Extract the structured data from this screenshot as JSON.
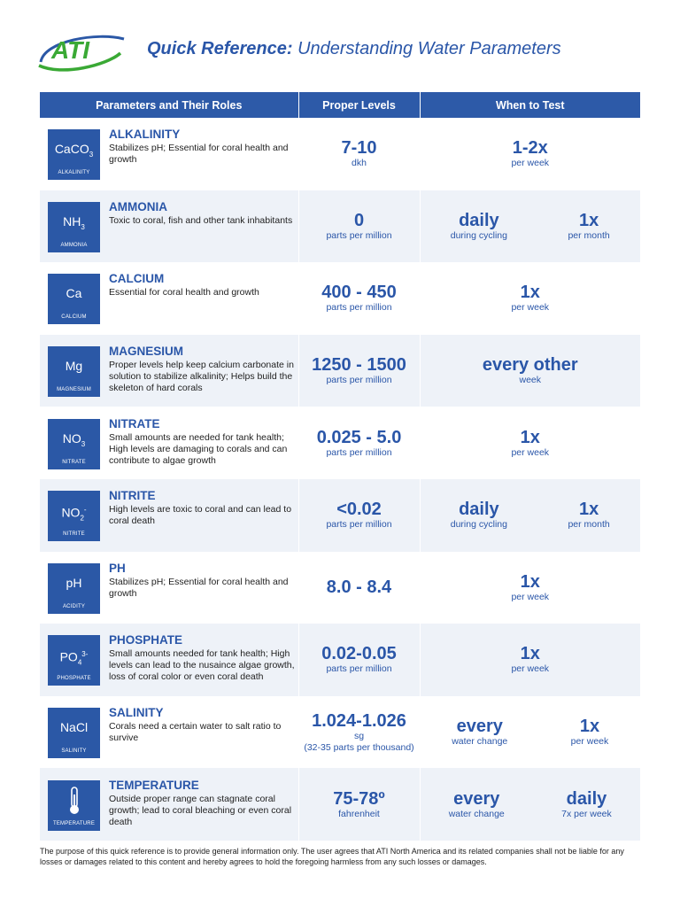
{
  "header": {
    "logo_text": "ATI",
    "title_bold": "Quick Reference:",
    "title_rest": "Understanding Water Parameters"
  },
  "columns": [
    "Parameters and Their Roles",
    "Proper Levels",
    "When to Test"
  ],
  "rows": [
    {
      "symbol": "CaCO",
      "symbol_sub": "3",
      "symbol_sup": "",
      "badge_label": "ALKALINITY",
      "name": "ALKALINITY",
      "desc": "Stabilizes pH; Essential for coral health and growth",
      "level": "7-10",
      "level_unit": "dkh",
      "level_note": "",
      "when": [
        {
          "big": "1-2x",
          "small": "per week"
        }
      ]
    },
    {
      "symbol": "NH",
      "symbol_sub": "3",
      "symbol_sup": "",
      "badge_label": "AMMONIA",
      "name": "AMMONIA",
      "desc": "Toxic to coral, fish and other tank inhabitants",
      "level": "0",
      "level_unit": "parts per million",
      "level_note": "",
      "when": [
        {
          "big": "daily",
          "small": "during cycling"
        },
        {
          "big": "1x",
          "small": "per month"
        }
      ]
    },
    {
      "symbol": "Ca",
      "symbol_sub": "",
      "symbol_sup": "",
      "badge_label": "CALCIUM",
      "name": "CALCIUM",
      "desc": "Essential for coral health and growth",
      "level": "400 - 450",
      "level_unit": "parts per million",
      "level_note": "",
      "when": [
        {
          "big": "1x",
          "small": "per week"
        }
      ]
    },
    {
      "symbol": "Mg",
      "symbol_sub": "",
      "symbol_sup": "",
      "badge_label": "MAGNESIUM",
      "name": "MAGNESIUM",
      "desc": "Proper levels help keep calcium carbonate in solution to stabilize alkalinity; Helps build the skeleton of hard corals",
      "level": "1250 - 1500",
      "level_unit": "parts per million",
      "level_note": "",
      "when": [
        {
          "big": "every other",
          "small": "week"
        }
      ]
    },
    {
      "symbol": "NO",
      "symbol_sub": "3",
      "symbol_sup": "",
      "badge_label": "NITRATE",
      "name": "NITRATE",
      "desc": "Small amounts are needed for tank health; High levels are damaging to corals and can contribute to algae growth",
      "level": "0.025 - 5.0",
      "level_unit": "parts per million",
      "level_note": "",
      "when": [
        {
          "big": "1x",
          "small": "per week"
        }
      ]
    },
    {
      "symbol": "NO",
      "symbol_sub": "2",
      "symbol_sup": "-",
      "badge_label": "NITRITE",
      "name": "NITRITE",
      "desc": "High levels are toxic to coral and can lead to coral death",
      "level": "<0.02",
      "level_unit": "parts per million",
      "level_note": "",
      "when": [
        {
          "big": "daily",
          "small": "during cycling"
        },
        {
          "big": "1x",
          "small": "per month"
        }
      ]
    },
    {
      "symbol": "pH",
      "symbol_sub": "",
      "symbol_sup": "",
      "badge_label": "ACIDITY",
      "name": "PH",
      "desc": "Stabilizes pH; Essential for coral health and growth",
      "level": "8.0 - 8.4",
      "level_unit": "",
      "level_note": "",
      "when": [
        {
          "big": "1x",
          "small": "per week"
        }
      ]
    },
    {
      "symbol": "PO",
      "symbol_sub": "4",
      "symbol_sup": "3-",
      "badge_label": "PHOSPHATE",
      "name": "PHOSPHATE",
      "desc": "Small amounts needed for tank health; High levels can lead to the nusaince algae growth, loss of coral color or even coral death",
      "level": "0.02-0.05",
      "level_unit": "parts per million",
      "level_note": "",
      "when": [
        {
          "big": "1x",
          "small": "per week"
        }
      ]
    },
    {
      "symbol": "NaCl",
      "symbol_sub": "",
      "symbol_sup": "",
      "badge_label": "SALINITY",
      "name": "SALINITY",
      "desc": "Corals need a certain water to salt ratio to survive",
      "level": "1.024-1.026",
      "level_unit": "sg",
      "level_note": "(32-35 parts per thousand)",
      "when": [
        {
          "big": "every",
          "small": "water change"
        },
        {
          "big": "1x",
          "small": "per week"
        }
      ]
    },
    {
      "symbol": "",
      "symbol_sub": "",
      "symbol_sup": "",
      "badge_label": "TEMPERATURE",
      "name": "TEMPERATURE",
      "desc": "Outside proper range can stagnate coral growth; lead to coral bleaching or even coral death",
      "level": "75-78º",
      "level_unit": "fahrenheit",
      "level_note": "",
      "when": [
        {
          "big": "every",
          "small": "water change"
        },
        {
          "big": "daily",
          "small": "7x per week"
        }
      ]
    }
  ],
  "footer": "The purpose of this quick reference is to provide general information only. The user agrees that ATI North America and its related companies shall not be liable for any losses or damages related to this content and hereby agrees to hold the foregoing harmless from any such losses or damages.",
  "colors": {
    "brand_blue": "#2b58a6",
    "logo_green": "#3aa935",
    "row_alt": "#eef2f8"
  }
}
